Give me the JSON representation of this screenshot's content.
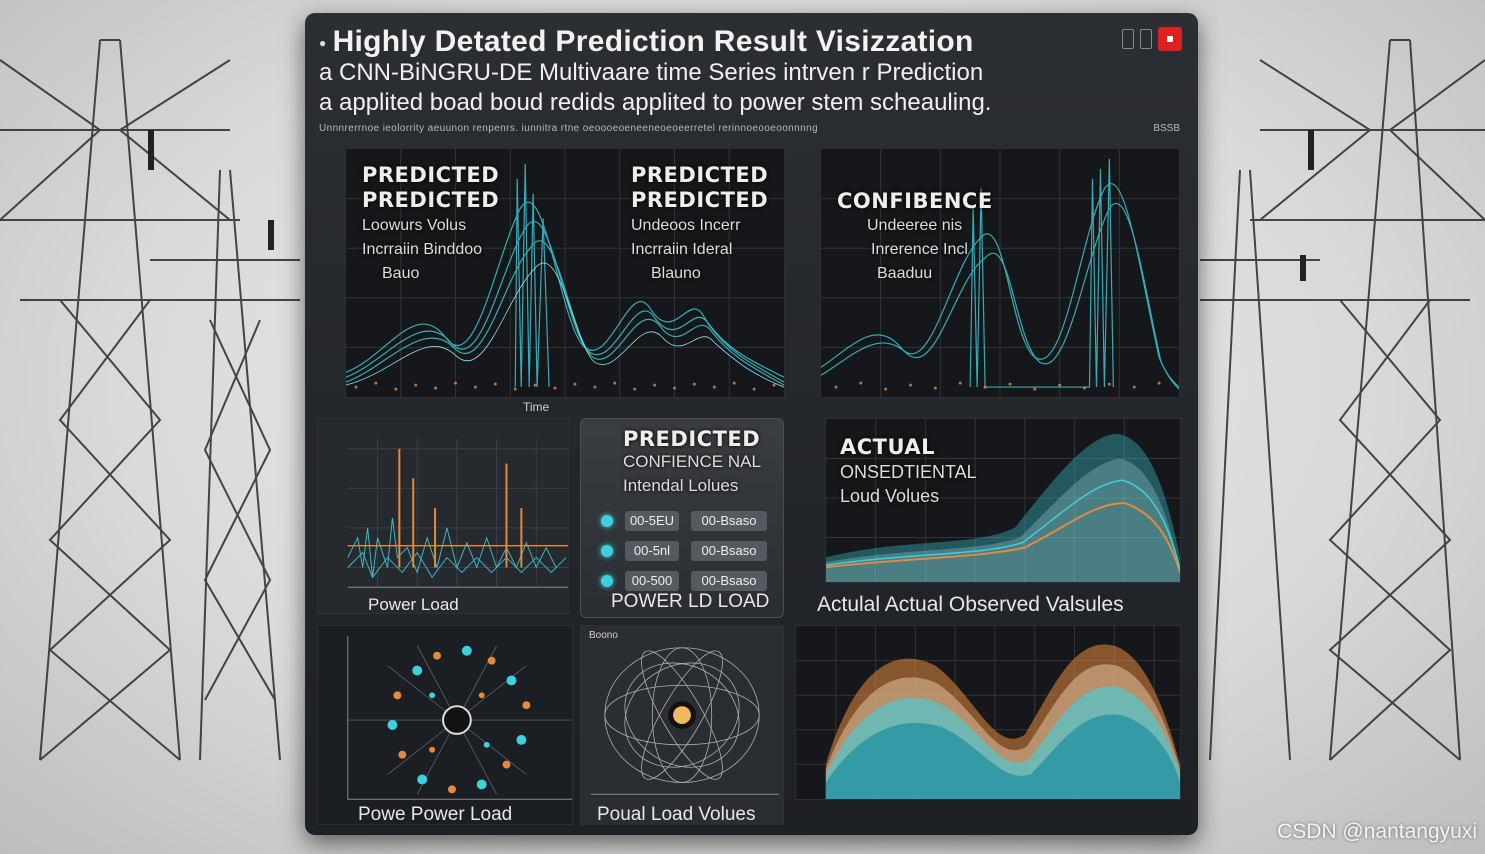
{
  "header": {
    "title": "Highly Detated Prediction Result Visizzation",
    "subtitle_line1": "a CNN-BiNGRU-DE Multivaare time Series intrven r Prediction",
    "subtitle_line2": "a applited boad boud redids applited to power stem scheauling.",
    "caption": "Unnnrerrnoe ieolorrity aeuunon renpenrs. iunnitra rtne oeoooeoeneeneoeoeerretel rerinnoeooeoonnnng",
    "caption_right": "BSSB"
  },
  "charts": {
    "top_left": {
      "label_a": "PREDICTED",
      "label_b": "PREDICTED",
      "label_c": "Loowurs Volus",
      "label_d": "Incrraiin Binddoo",
      "label_e": "Bauo",
      "label_f": "PREDICTED",
      "label_g": "PREDICTED",
      "label_h": "Undeoos Incerr",
      "label_i": "Incrraiin Ideral",
      "label_j": "Blauno",
      "x_label": "Time"
    },
    "top_right": {
      "label_a": "CONFIBENCE",
      "label_b": "Undeeree nis",
      "label_c": "Inrerence Incl",
      "label_d": "Baaduu"
    },
    "mid_left": {
      "caption": "Power Load"
    },
    "mid_center": {
      "label_a": "PREDICTED",
      "label_b": "CONFIENCE NAL",
      "label_c": "Intendal Lolues",
      "rows": [
        {
          "chip": "00-5EU",
          "chip2": "00-Bsaso"
        },
        {
          "chip": "00-5nl",
          "chip2": "00-Bsaso"
        },
        {
          "chip": "00-500",
          "chip2": "00-Bsaso"
        }
      ],
      "caption": "POWER LD LOAD"
    },
    "mid_right": {
      "label_a": "ACTUAL",
      "label_b": "ONSEDTIENTAL",
      "label_c": "Loud Volues",
      "caption": "Actulal Actual Observed Valsules"
    },
    "bottom_left": {
      "caption": "Powe Power Load"
    },
    "bottom_center": {
      "caption": "Poual Load Volues",
      "corner": "Boono"
    },
    "bottom_right": {}
  },
  "watermark": "CSDN @nantangyuxi",
  "colors": {
    "cyan": "#3fd0e0",
    "orange": "#e58a3c",
    "panel": "#24272b"
  }
}
